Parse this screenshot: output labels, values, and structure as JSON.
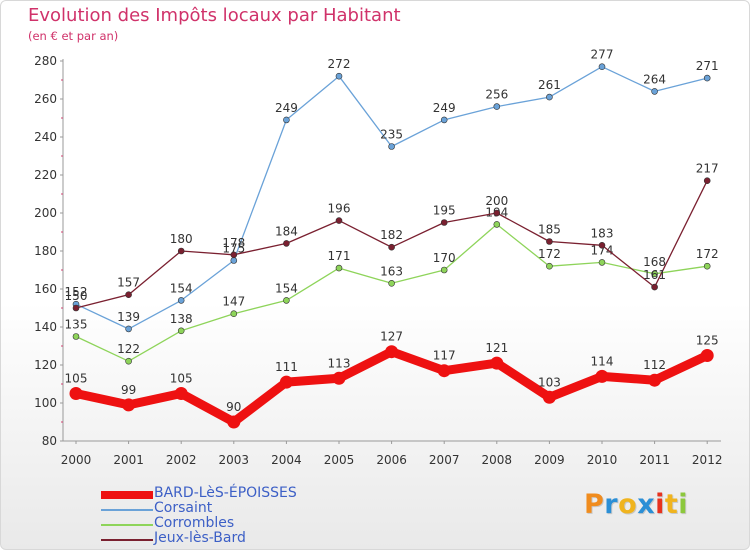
{
  "title": "Evolution des Impôts locaux par Habitant",
  "subtitle": "(en € et par an)",
  "logo": {
    "text": "Proxiti",
    "colors": [
      "#f08c1e",
      "#2b8fd6",
      "#f0b41e",
      "#2b8fd6",
      "#e8321e",
      "#f0b41e",
      "#8cc83c"
    ]
  },
  "chart_data": {
    "type": "line",
    "x": [
      2000,
      2001,
      2002,
      2003,
      2004,
      2005,
      2006,
      2007,
      2008,
      2009,
      2010,
      2011,
      2012
    ],
    "ylim": [
      80,
      280
    ],
    "yticks": [
      80,
      100,
      120,
      140,
      160,
      180,
      200,
      220,
      240,
      260,
      280
    ],
    "grid": false,
    "legend_position": "bottom-left",
    "series": [
      {
        "name": "BARD-LèS-ÉPOISSES",
        "color": "#ee1111",
        "values": [
          105,
          99,
          105,
          90,
          111,
          113,
          127,
          117,
          121,
          103,
          114,
          112,
          125
        ]
      },
      {
        "name": "Corsaint",
        "color": "#6aa2d8",
        "values": [
          152,
          139,
          154,
          175,
          249,
          272,
          235,
          249,
          256,
          261,
          277,
          264,
          271
        ]
      },
      {
        "name": "Corrombles",
        "color": "#8ed45a",
        "values": [
          135,
          122,
          138,
          147,
          154,
          171,
          163,
          170,
          194,
          172,
          174,
          168,
          172
        ]
      },
      {
        "name": "Jeux-lès-Bard",
        "color": "#7a2030",
        "values": [
          150,
          157,
          180,
          178,
          184,
          196,
          182,
          195,
          200,
          185,
          183,
          161,
          217
        ]
      }
    ]
  }
}
